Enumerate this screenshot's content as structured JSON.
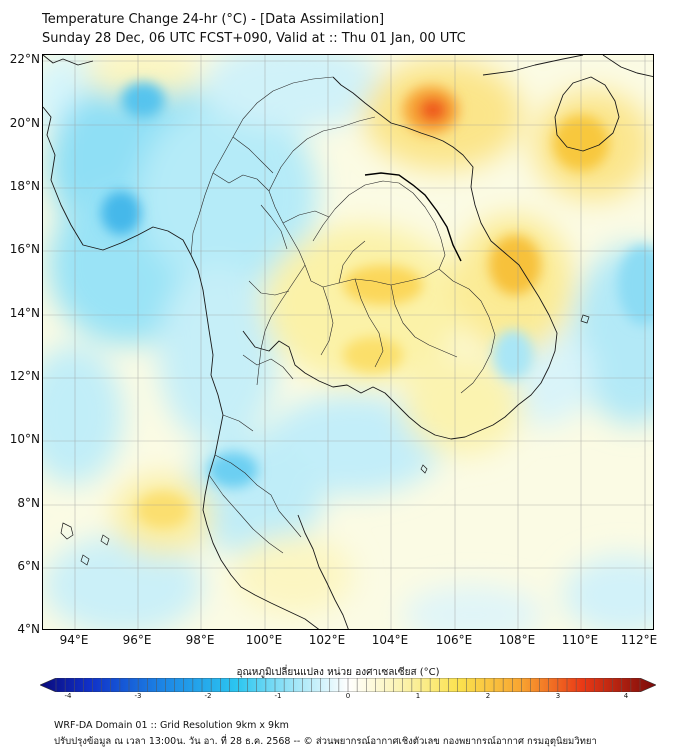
{
  "title_line1": "Temperature Change 24-hr (°C) - [Data Assimilation]",
  "title_line2": "Sunday 28 Dec, 06 UTC FCST+090, Valid at :: Thu 01 Jan, 00 UTC",
  "lat_labels": [
    "22°N",
    "20°N",
    "18°N",
    "16°N",
    "14°N",
    "12°N",
    "10°N",
    "8°N",
    "6°N",
    "4°N"
  ],
  "lon_labels": [
    "94°E",
    "96°E",
    "98°E",
    "100°E",
    "102°E",
    "104°E",
    "106°E",
    "108°E",
    "110°E",
    "112°E"
  ],
  "colorbar": {
    "title": "อุณหภูมิเปลี่ยนแปลง หน่วย องศาเซลเซียส (°C)",
    "ticks": [
      "-4",
      "-3",
      "-2",
      "-1",
      "0",
      "1",
      "2",
      "3",
      "4"
    ],
    "min": -4,
    "max": 4
  },
  "footer_line1": "WRF-DA Domain 01 :: Grid Resolution 9km x 9km",
  "footer_line2": "ปรับปรุงข้อมูล ณ เวลา 13:00น. วัน อา. ที่ 28 ธ.ค. 2568 -- © ส่วนพยากรณ์อากาศเชิงตัวเลข กองพยากรณ์อากาศ กรมอุตุนิยมวิทยา"
}
